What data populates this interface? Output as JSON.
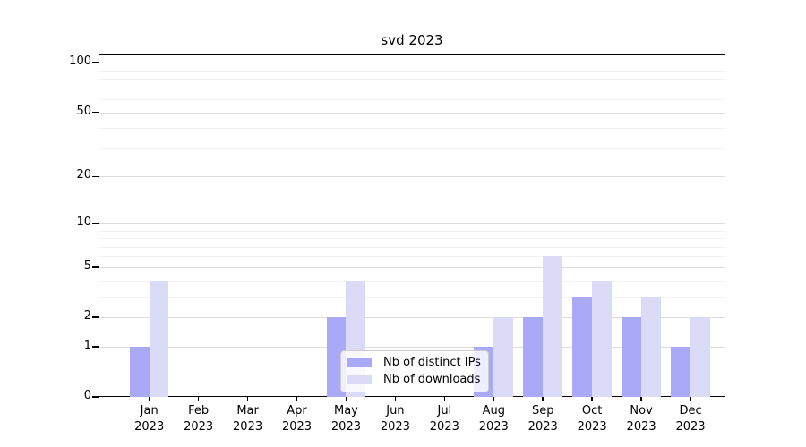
{
  "title": "svd 2023",
  "chart_data": {
    "type": "bar",
    "title": "svd 2023",
    "categories": [
      "Jan",
      "Feb",
      "Mar",
      "Apr",
      "May",
      "Jun",
      "Jul",
      "Aug",
      "Sep",
      "Oct",
      "Nov",
      "Dec"
    ],
    "category_sublabel": "2023",
    "series": [
      {
        "name": "Nb of distinct IPs",
        "color": "#a9a9f7",
        "values": [
          1,
          0,
          0,
          0,
          2,
          0,
          0,
          1,
          2,
          3,
          2,
          1
        ]
      },
      {
        "name": "Nb of downloads",
        "color": "#dbdbf8",
        "values": [
          4,
          0,
          0,
          0,
          4,
          0,
          0,
          2,
          6,
          4,
          3,
          2
        ]
      }
    ],
    "xlabel": "",
    "ylabel": "",
    "yscale": "log1p",
    "ylim": [
      0,
      113.6
    ],
    "yticks": [
      0,
      1,
      2,
      5,
      10,
      20,
      50,
      100
    ],
    "yticks_minor": [
      3,
      4,
      6,
      7,
      8,
      9,
      30,
      40,
      60,
      70,
      80,
      90
    ],
    "grid": true,
    "legend_position": "lower center"
  },
  "colors": {
    "bar_distinct_ips": "#a9a9f7",
    "bar_downloads": "#dbdbf8",
    "grid_major": "#dcdcdc",
    "grid_minor": "#f2f2f2",
    "axis": "#000000",
    "background": "#ffffff"
  }
}
